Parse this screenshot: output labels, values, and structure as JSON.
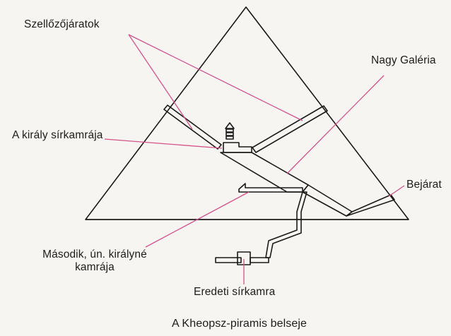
{
  "labels": {
    "vents": "Szellőzőjáratok",
    "grand_gallery": "Nagy Galéria",
    "kings_chamber": "A király sírkamrája",
    "entrance": "Bejárat",
    "queens_chamber_line1": "Második, ún. királyné",
    "queens_chamber_line2": "kamrája",
    "original_chamber": "Eredeti sírkamra"
  },
  "caption": "A Kheopsz-piramis belseje",
  "colors": {
    "pyramid_outline": "#1a1a1a",
    "leader_line": "#d4528a",
    "background": "#f6f5f1"
  }
}
